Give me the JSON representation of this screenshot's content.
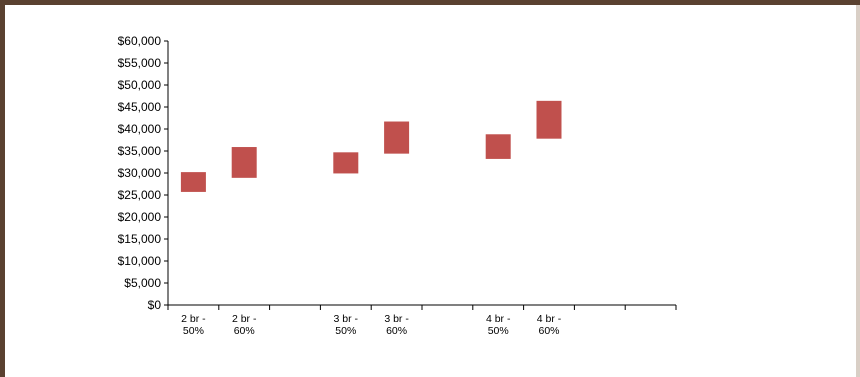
{
  "chart_data": {
    "type": "bar",
    "subtype": "floating-range",
    "title": "",
    "xlabel": "",
    "ylabel": "",
    "ylim": [
      0,
      60000
    ],
    "yticks": [
      "$0",
      "$5,000",
      "$10,000",
      "$15,000",
      "$20,000",
      "$25,000",
      "$30,000",
      "$35,000",
      "$40,000",
      "$45,000",
      "$50,000",
      "$55,000",
      "$60,000"
    ],
    "category_slots": 10,
    "categories": [
      {
        "slot": 0,
        "label": [
          "2 br -",
          "50%"
        ],
        "low": 25700,
        "high": 30200
      },
      {
        "slot": 1,
        "label": [
          "2 br -",
          "60%"
        ],
        "low": 28900,
        "high": 35900
      },
      {
        "slot": 3,
        "label": [
          "3 br -",
          "50%"
        ],
        "low": 29900,
        "high": 34700
      },
      {
        "slot": 4,
        "label": [
          "3 br -",
          "60%"
        ],
        "low": 34400,
        "high": 41700
      },
      {
        "slot": 6,
        "label": [
          "4 br -",
          "50%"
        ],
        "low": 33200,
        "high": 38800
      },
      {
        "slot": 7,
        "label": [
          "4 br -",
          "60%"
        ],
        "low": 37800,
        "high": 46400
      }
    ],
    "bar_color": "#c0504d",
    "grid": false,
    "legend": "none"
  }
}
